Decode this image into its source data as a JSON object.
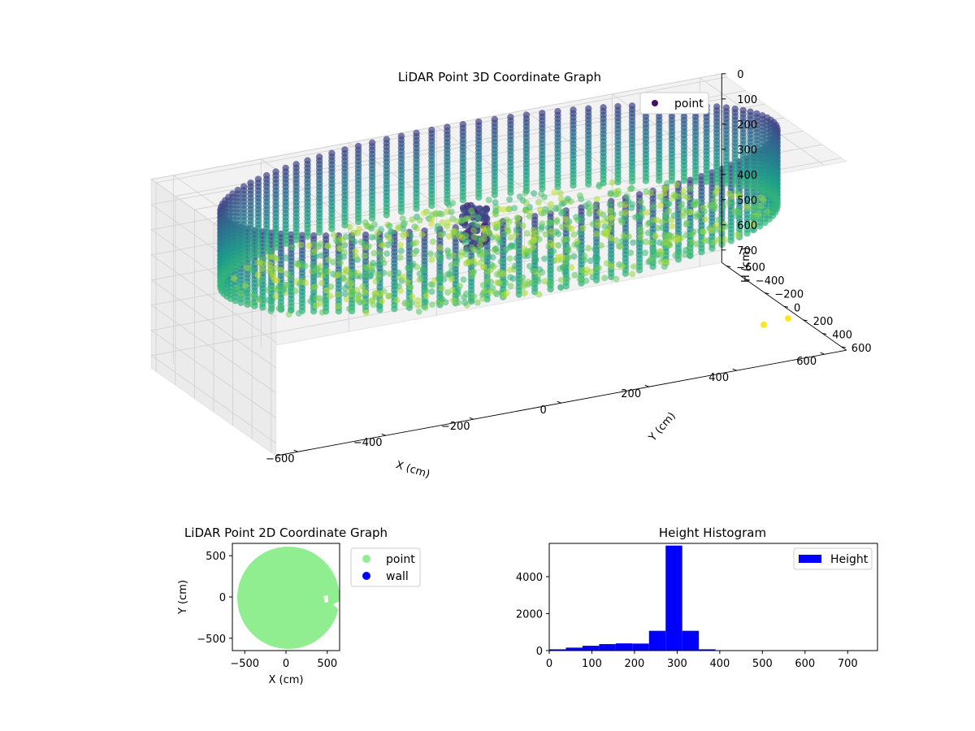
{
  "chart_data": [
    {
      "type": "scatter",
      "projection": "3d",
      "title": "LiDAR Point 3D Coordinate Graph",
      "xlabel": "X (cm)",
      "ylabel": "Y (cm)",
      "zlabel": "H (cm)",
      "x_ticks": [
        -600,
        -400,
        -200,
        0,
        200,
        400,
        600
      ],
      "y_ticks": [
        -600,
        -400,
        -200,
        0,
        200,
        400,
        600
      ],
      "z_ticks": [
        0,
        100,
        200,
        300,
        400,
        500,
        600,
        700
      ],
      "z_axis_inverted": true,
      "xlim": [
        -650,
        650
      ],
      "ylim": [
        -650,
        650
      ],
      "zlim": [
        0,
        750
      ],
      "colormap": "viridis",
      "legend": {
        "placement": "top-right",
        "entries": [
          "point"
        ]
      },
      "grid": true,
      "series": [
        {
          "name": "point",
          "shape": "ring of wall points (radius ~620 cm) sampled at heights 0–300 cm, plus a floor surface near 300 cm and a cluster near the center",
          "wall_radius": 620,
          "wall_height_range": [
            0,
            300
          ],
          "floor_height": 300,
          "outliers": [
            {
              "x": 560,
              "y": 200,
              "h": 740
            },
            {
              "x": 620,
              "y": 180,
              "h": 740
            }
          ]
        }
      ]
    },
    {
      "type": "scatter",
      "title": "LiDAR Point 2D Coordinate Graph",
      "xlabel": "X (cm)",
      "ylabel": "Y (cm)",
      "x_ticks": [
        -500,
        0,
        500
      ],
      "y_ticks": [
        -500,
        0,
        500
      ],
      "xlim": [
        -650,
        650
      ],
      "ylim": [
        -650,
        650
      ],
      "legend": {
        "placement": "outside-right",
        "entries": [
          "point",
          "wall"
        ]
      },
      "series": [
        {
          "name": "point",
          "color": "#90ee90",
          "shape": "filled disk, center (0,0), radius ~620 cm"
        },
        {
          "name": "wall",
          "color": "#0000ff"
        }
      ]
    },
    {
      "type": "bar",
      "subtype": "histogram",
      "title": "Height Histogram",
      "xlabel": "",
      "ylabel": "",
      "x_ticks": [
        0,
        100,
        200,
        300,
        400,
        500,
        600,
        700
      ],
      "y_ticks": [
        0,
        2000,
        4000
      ],
      "xlim": [
        0,
        770
      ],
      "ylim": [
        0,
        5800
      ],
      "color": "#0000ff",
      "legend": {
        "placement": "top-right",
        "entries": [
          "Height"
        ]
      },
      "bins": [
        {
          "x0": 0,
          "x1": 39,
          "value": 70
        },
        {
          "x0": 39,
          "x1": 78,
          "value": 160
        },
        {
          "x0": 78,
          "x1": 117,
          "value": 260
        },
        {
          "x0": 117,
          "x1": 156,
          "value": 350
        },
        {
          "x0": 156,
          "x1": 195,
          "value": 390
        },
        {
          "x0": 195,
          "x1": 234,
          "value": 380
        },
        {
          "x0": 234,
          "x1": 273,
          "value": 1070
        },
        {
          "x0": 273,
          "x1": 312,
          "value": 5680
        },
        {
          "x0": 312,
          "x1": 351,
          "value": 1070
        },
        {
          "x0": 351,
          "x1": 390,
          "value": 70
        },
        {
          "x0": 390,
          "x1": 429,
          "value": 15
        },
        {
          "x0": 429,
          "x1": 468,
          "value": 10
        },
        {
          "x0": 468,
          "x1": 507,
          "value": 8
        },
        {
          "x0": 507,
          "x1": 546,
          "value": 6
        },
        {
          "x0": 546,
          "x1": 585,
          "value": 5
        },
        {
          "x0": 585,
          "x1": 624,
          "value": 5
        },
        {
          "x0": 624,
          "x1": 663,
          "value": 5
        },
        {
          "x0": 663,
          "x1": 702,
          "value": 4
        },
        {
          "x0": 702,
          "x1": 741,
          "value": 3
        },
        {
          "x0": 741,
          "x1": 780,
          "value": 3
        }
      ]
    }
  ]
}
